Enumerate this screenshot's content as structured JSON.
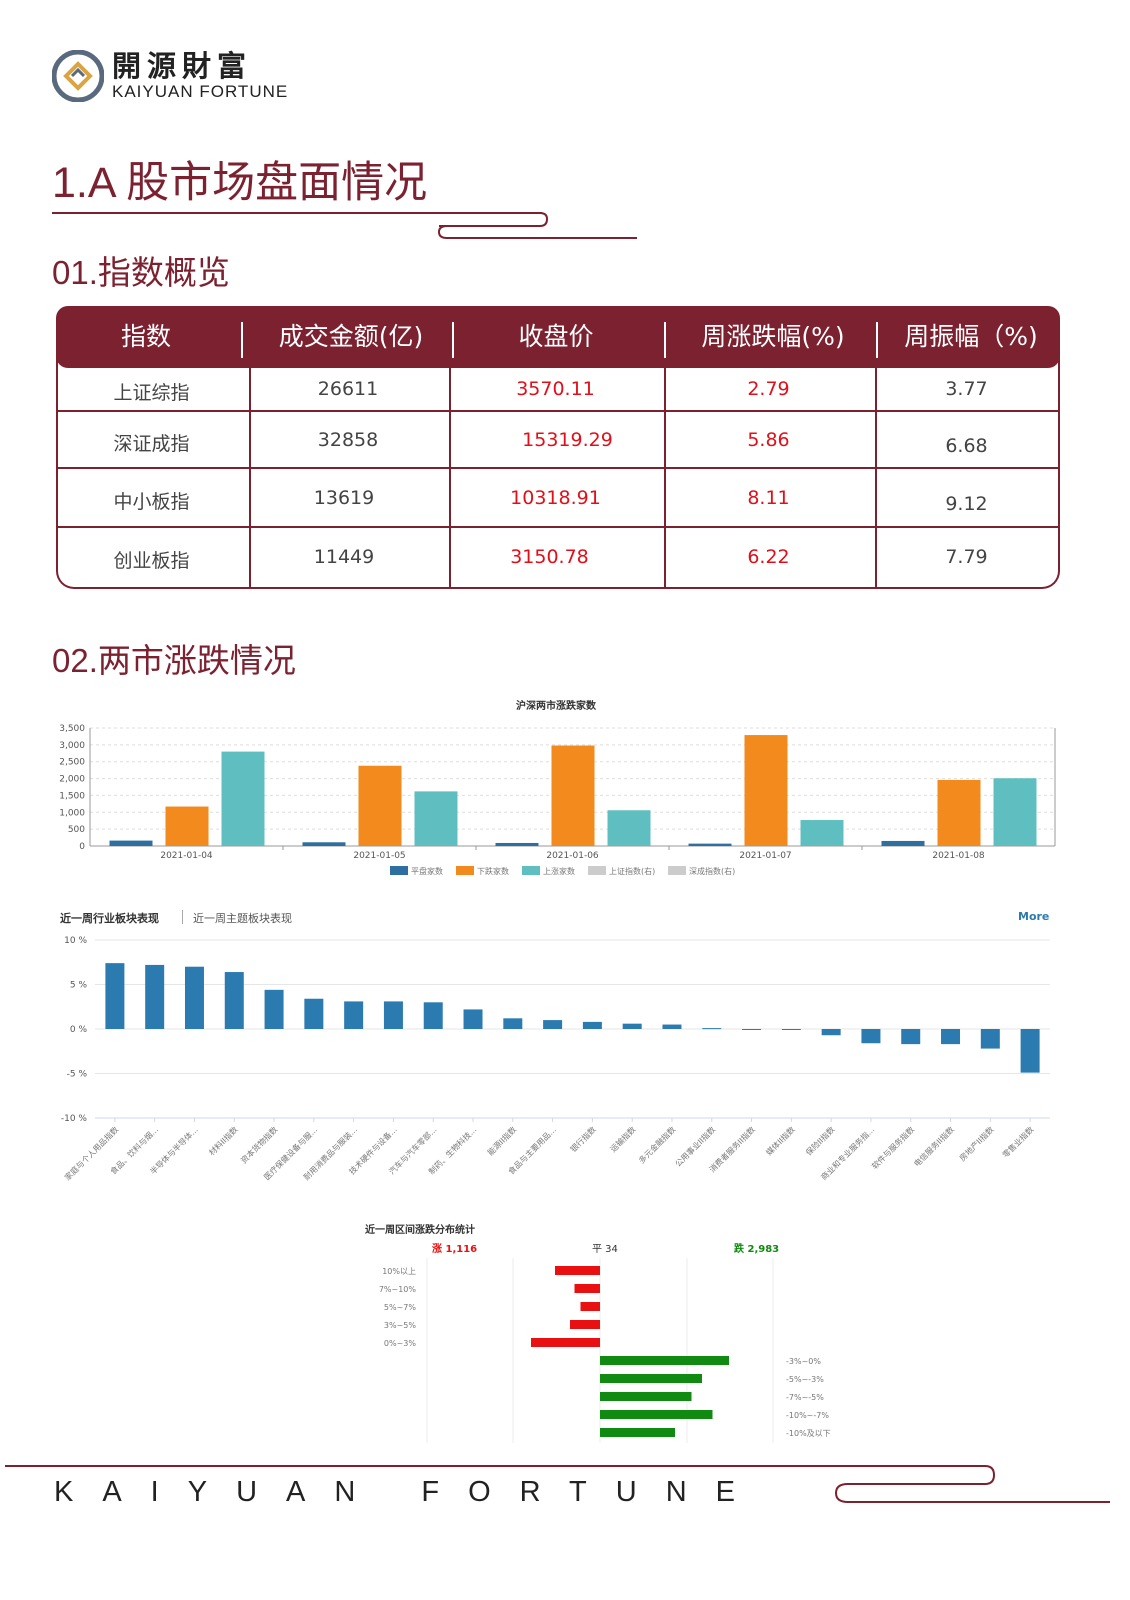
{
  "brand": {
    "name_cn": "開源財富",
    "name_en": "KAIYUAN FORTUNE"
  },
  "section_title": "1.A 股市场盘面情况",
  "sub1_title": "01.指数概览",
  "sub2_title": "02.两市涨跌情况",
  "index_table": {
    "headers": [
      "指数",
      "成交金额(亿)",
      "收盘价",
      "周涨跌幅(%)",
      "周振幅（%)"
    ],
    "rows": [
      [
        "上证综指",
        "26611",
        "3570.11",
        "2.79",
        "3.77"
      ],
      [
        "深证成指",
        "32858",
        "15319.29",
        "5.86",
        "6.68"
      ],
      [
        "中小板指",
        "13619",
        "10318.91",
        "8.11",
        "9.12"
      ],
      [
        "创业板指",
        "11449",
        "3150.78",
        "6.22",
        "7.79"
      ]
    ]
  },
  "chart_data": [
    {
      "type": "bar",
      "title": "沪深两市涨跌家数",
      "categories": [
        "2021-01-04",
        "2021-01-05",
        "2021-01-06",
        "2021-01-07",
        "2021-01-08"
      ],
      "ylim": [
        0,
        3500
      ],
      "yticks": [
        "3,500",
        "3,000",
        "2,500",
        "2,000",
        "1,500",
        "1,000",
        "500",
        "0"
      ],
      "series": [
        {
          "name": "平盘家数",
          "color": "#2c6fa0",
          "values": [
            160,
            110,
            90,
            70,
            150
          ]
        },
        {
          "name": "下跌家数",
          "color": "#f28a1e",
          "values": [
            1170,
            2380,
            2980,
            3290,
            1960
          ]
        },
        {
          "name": "上涨家数",
          "color": "#5fbfc0",
          "values": [
            2800,
            1620,
            1060,
            770,
            2010
          ]
        }
      ],
      "legend_extra": [
        "上证指数(右)",
        "深成指数(右)"
      ]
    },
    {
      "type": "bar",
      "tabs": [
        "近一周行业板块表现",
        "近一周主题板块表现"
      ],
      "more_label": "More",
      "ylim": [
        -10,
        10
      ],
      "yticks": [
        "10 %",
        "5 %",
        "0 %",
        "-5 %",
        "-10 %"
      ],
      "categories": [
        "家庭与个人用品指数",
        "食品、饮料与烟...",
        "半导体与半导体...",
        "材料II指数",
        "资本货物指数",
        "医疗保健设备与服...",
        "耐用消费品与服装...",
        "技术硬件与设备...",
        "汽车与汽车零部...",
        "制药、生物科技...",
        "能源II指数",
        "食品与主要用品...",
        "银行指数",
        "运输指数",
        "多元金融指数",
        "公用事业II指数",
        "消费者服务II指数",
        "媒体II指数",
        "保险II指数",
        "商业和专业服务指...",
        "软件与服务指数",
        "电信服务II指数",
        "房地产II指数",
        "零售业指数"
      ],
      "values": [
        7.4,
        7.2,
        7.0,
        6.4,
        4.4,
        3.4,
        3.1,
        3.1,
        3.0,
        2.2,
        1.2,
        1.0,
        0.8,
        0.6,
        0.5,
        0.1,
        -0.1,
        -0.1,
        -0.7,
        -1.6,
        -1.7,
        -1.7,
        -2.2,
        -4.9
      ],
      "color": "#2c7bb0"
    },
    {
      "type": "bar",
      "title": "近一周区间涨跌分布统计",
      "summary": {
        "up_label": "涨 1,116",
        "flat_label": "平 34",
        "down_label": "跌 2,983"
      },
      "up_categories": [
        "10%以上",
        "7%~10%",
        "5%~7%",
        "3%~5%",
        "0%~3%"
      ],
      "up_values": [
        150,
        85,
        65,
        100,
        230
      ],
      "down_categories": [
        "-3%~0%",
        "-5%~-3%",
        "-7%~-5%",
        "-10%~-7%",
        "-10%及以下"
      ],
      "down_values": [
        430,
        340,
        305,
        375,
        250
      ],
      "up_color": "#e81010",
      "down_color": "#118a11"
    }
  ],
  "footer": "KAIYUAN FORTUNE"
}
